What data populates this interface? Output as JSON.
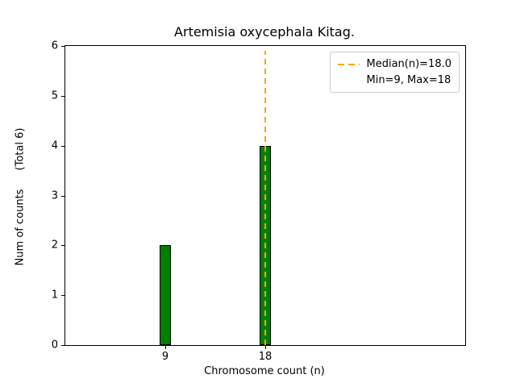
{
  "chart_data": {
    "type": "bar",
    "title": "Artemisia oxycephala Kitag.",
    "xlabel": "Chromosome count (n)",
    "ylabel": "Num of counts",
    "ylabel_note": "(Total 6)",
    "categories": [
      9,
      18
    ],
    "values": [
      2,
      4
    ],
    "bar_width": 1,
    "bar_color": "#008000",
    "bar_edge_color": "#000000",
    "xlim": [
      0,
      36
    ],
    "ylim": [
      0,
      6
    ],
    "xticks": [
      9,
      18
    ],
    "yticks": [
      0,
      1,
      2,
      3,
      4,
      5,
      6
    ],
    "grid": false,
    "median_line": {
      "x": 18,
      "ymax_value": 5.9,
      "color": "#FFA500",
      "style": "dashed"
    },
    "legend_position": "upper right",
    "legend": [
      {
        "label": "Median(n)=18.0",
        "marker": "dashed-line",
        "color": "#FFA500"
      },
      {
        "label": "Min=9, Max=18",
        "marker": "none"
      }
    ]
  }
}
